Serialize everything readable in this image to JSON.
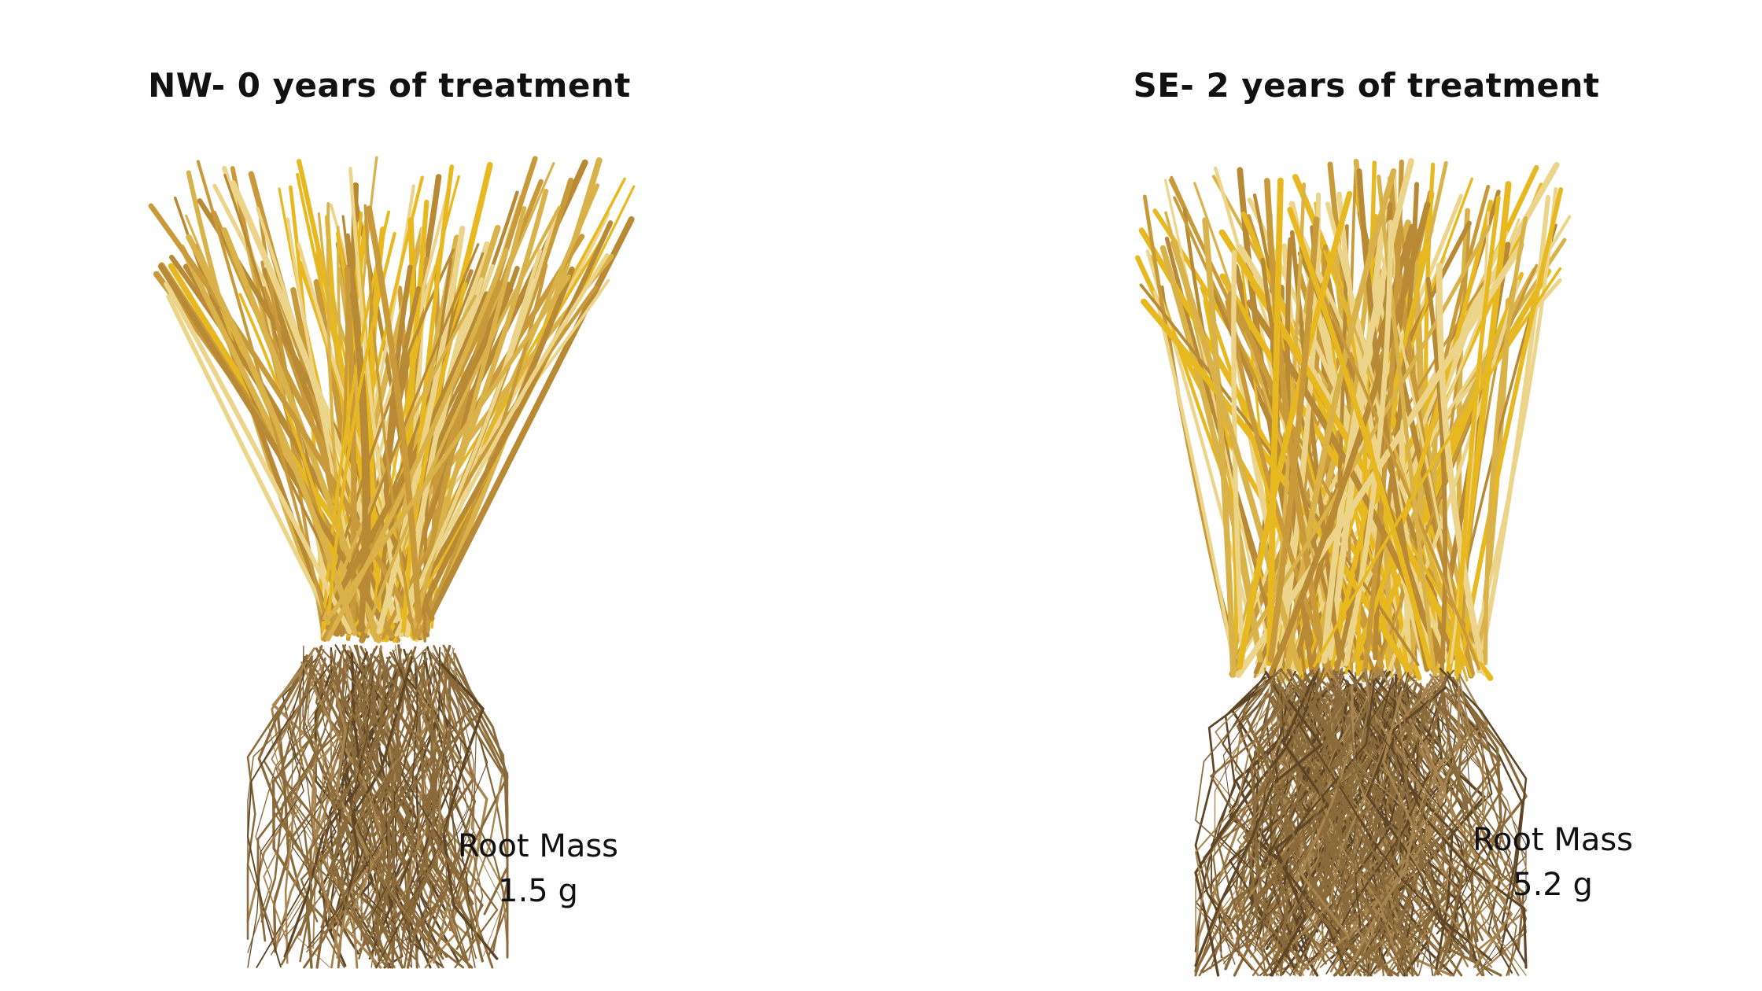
{
  "panels": [
    {
      "title": "NW- 0 years of treatment",
      "label_line1": "Root Mass",
      "label_line2": "1.5 g"
    },
    {
      "title": "SE- 2 years of treatment",
      "label_line1": "Root Mass",
      "label_line2": "5.2 g"
    }
  ],
  "colors": {
    "straw": "#d9b24a",
    "straw_light": "#ecd58a",
    "straw_bright": "#e8b820",
    "root": "#8a6a3a",
    "root_dark": "#5e4526",
    "text": "#111111"
  }
}
